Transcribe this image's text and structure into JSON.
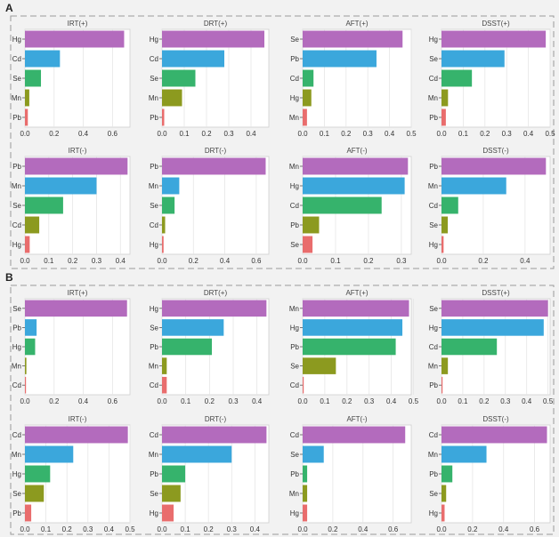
{
  "sections": [
    {
      "label": "A"
    },
    {
      "label": "B"
    }
  ],
  "colors": {
    "rank1": "#b36bbd",
    "rank2": "#3ba7dc",
    "rank3": "#36b36c",
    "rank4": "#8c9a1f",
    "rank5": "#e96d6d",
    "panel_bg": "#ffffff",
    "grid": "#e6e6e6",
    "dash": "#9a9a9a"
  },
  "chart_data": [
    {
      "type": "bar",
      "section": "A",
      "title": "IRT(+)",
      "categories": [
        "Hg",
        "Cd",
        "Se",
        "Mn",
        "Pb"
      ],
      "values": [
        0.68,
        0.24,
        0.11,
        0.03,
        0.02
      ],
      "xlim": [
        0,
        0.72
      ],
      "ticks": [
        "0.0",
        "0.2",
        "0.4",
        "0.6"
      ],
      "tick_values": [
        0,
        0.2,
        0.4,
        0.6
      ]
    },
    {
      "type": "bar",
      "section": "A",
      "title": "DRT(+)",
      "categories": [
        "Hg",
        "Cd",
        "Se",
        "Mn",
        "Pb"
      ],
      "values": [
        0.46,
        0.28,
        0.15,
        0.09,
        0.01
      ],
      "xlim": [
        0,
        0.48
      ],
      "ticks": [
        "0.0",
        "0.1",
        "0.2",
        "0.3",
        "0.4"
      ],
      "tick_values": [
        0,
        0.1,
        0.2,
        0.3,
        0.4
      ]
    },
    {
      "type": "bar",
      "section": "A",
      "title": "AFT(+)",
      "categories": [
        "Se",
        "Pb",
        "Cd",
        "Hg",
        "Mn"
      ],
      "values": [
        0.46,
        0.34,
        0.05,
        0.04,
        0.02
      ],
      "xlim": [
        0,
        0.5
      ],
      "ticks": [
        "0.0",
        "0.1",
        "0.2",
        "0.3",
        "0.4",
        "0.5"
      ],
      "tick_values": [
        0,
        0.1,
        0.2,
        0.3,
        0.4,
        0.5
      ]
    },
    {
      "type": "bar",
      "section": "A",
      "title": "DSST(+)",
      "categories": [
        "Hg",
        "Se",
        "Cd",
        "Mn",
        "Pb"
      ],
      "values": [
        0.48,
        0.29,
        0.14,
        0.03,
        0.02
      ],
      "xlim": [
        0,
        0.5
      ],
      "ticks": [
        "0.0",
        "0.1",
        "0.2",
        "0.3",
        "0.4",
        "0.5"
      ],
      "tick_values": [
        0,
        0.1,
        0.2,
        0.3,
        0.4,
        0.5
      ]
    },
    {
      "type": "bar",
      "section": "A",
      "title": "IRT(-)",
      "categories": [
        "Pb",
        "Mn",
        "Se",
        "Cd",
        "Hg"
      ],
      "values": [
        0.43,
        0.3,
        0.16,
        0.06,
        0.02
      ],
      "xlim": [
        0,
        0.44
      ],
      "ticks": [
        "0.0",
        "0.1",
        "0.2",
        "0.3",
        "0.4"
      ],
      "tick_values": [
        0,
        0.1,
        0.2,
        0.3,
        0.4
      ]
    },
    {
      "type": "bar",
      "section": "A",
      "title": "DRT(-)",
      "categories": [
        "Pb",
        "Mn",
        "Se",
        "Cd",
        "Hg"
      ],
      "values": [
        0.66,
        0.11,
        0.08,
        0.02,
        0.01
      ],
      "xlim": [
        0,
        0.68
      ],
      "ticks": [
        "0.0",
        "0.2",
        "0.4",
        "0.6"
      ],
      "tick_values": [
        0,
        0.2,
        0.4,
        0.6
      ]
    },
    {
      "type": "bar",
      "section": "A",
      "title": "AFT(-)",
      "categories": [
        "Mn",
        "Hg",
        "Cd",
        "Pb",
        "Se"
      ],
      "values": [
        0.32,
        0.31,
        0.24,
        0.05,
        0.03
      ],
      "xlim": [
        0,
        0.33
      ],
      "ticks": [
        "0.0",
        "0.1",
        "0.2",
        "0.3"
      ],
      "tick_values": [
        0,
        0.1,
        0.2,
        0.3
      ]
    },
    {
      "type": "bar",
      "section": "A",
      "title": "DSST(-)",
      "categories": [
        "Pb",
        "Mn",
        "Cd",
        "Se",
        "Hg"
      ],
      "values": [
        0.5,
        0.31,
        0.08,
        0.03,
        0.01
      ],
      "xlim": [
        0,
        0.52
      ],
      "ticks": [
        "0.0",
        "0.2",
        "0.4"
      ],
      "tick_values": [
        0,
        0.2,
        0.4
      ]
    },
    {
      "type": "bar",
      "section": "B",
      "title": "IRT(+)",
      "categories": [
        "Se",
        "Pb",
        "Hg",
        "Mn",
        "Cd"
      ],
      "values": [
        0.7,
        0.08,
        0.07,
        0.01,
        0.005
      ],
      "xlim": [
        0,
        0.72
      ],
      "ticks": [
        "0.0",
        "0.2",
        "0.4",
        "0.6"
      ],
      "tick_values": [
        0,
        0.2,
        0.4,
        0.6
      ]
    },
    {
      "type": "bar",
      "section": "B",
      "title": "DRT(+)",
      "categories": [
        "Hg",
        "Se",
        "Pb",
        "Mn",
        "Cd"
      ],
      "values": [
        0.44,
        0.26,
        0.21,
        0.02,
        0.02
      ],
      "xlim": [
        0,
        0.45
      ],
      "ticks": [
        "0.0",
        "0.1",
        "0.2",
        "0.3",
        "0.4"
      ],
      "tick_values": [
        0,
        0.1,
        0.2,
        0.3,
        0.4
      ]
    },
    {
      "type": "bar",
      "section": "B",
      "title": "AFT(+)",
      "categories": [
        "Mn",
        "Hg",
        "Pb",
        "Se",
        "Cd"
      ],
      "values": [
        0.48,
        0.45,
        0.42,
        0.15,
        0.0
      ],
      "xlim": [
        0,
        0.49
      ],
      "ticks": [
        "0.0",
        "0.1",
        "0.2",
        "0.3",
        "0.4",
        "0.5"
      ],
      "tick_values": [
        0,
        0.1,
        0.2,
        0.3,
        0.4,
        0.5
      ]
    },
    {
      "type": "bar",
      "section": "B",
      "title": "DSST(+)",
      "categories": [
        "Se",
        "Hg",
        "Cd",
        "Mn",
        "Pb"
      ],
      "values": [
        0.5,
        0.48,
        0.26,
        0.03,
        0.005
      ],
      "xlim": [
        0,
        0.51
      ],
      "ticks": [
        "0.0",
        "0.1",
        "0.2",
        "0.3",
        "0.4",
        "0.5"
      ],
      "tick_values": [
        0,
        0.1,
        0.2,
        0.3,
        0.4,
        0.5
      ]
    },
    {
      "type": "bar",
      "section": "B",
      "title": "IRT(-)",
      "categories": [
        "Cd",
        "Mn",
        "Hg",
        "Se",
        "Pb"
      ],
      "values": [
        0.49,
        0.23,
        0.12,
        0.09,
        0.03
      ],
      "xlim": [
        0,
        0.5
      ],
      "ticks": [
        "0.0",
        "0.1",
        "0.2",
        "0.3",
        "0.4",
        "0.5"
      ],
      "tick_values": [
        0,
        0.1,
        0.2,
        0.3,
        0.4,
        0.5
      ]
    },
    {
      "type": "bar",
      "section": "B",
      "title": "DRT(-)",
      "categories": [
        "Cd",
        "Mn",
        "Pb",
        "Se",
        "Hg"
      ],
      "values": [
        0.45,
        0.3,
        0.1,
        0.08,
        0.05
      ],
      "xlim": [
        0,
        0.46
      ],
      "ticks": [
        "0.0",
        "0.1",
        "0.2",
        "0.3",
        "0.4"
      ],
      "tick_values": [
        0,
        0.1,
        0.2,
        0.3,
        0.4
      ]
    },
    {
      "type": "bar",
      "section": "B",
      "title": "AFT(-)",
      "categories": [
        "Cd",
        "Se",
        "Pb",
        "Mn",
        "Hg"
      ],
      "values": [
        0.68,
        0.14,
        0.03,
        0.03,
        0.03
      ],
      "xlim": [
        0,
        0.72
      ],
      "ticks": [
        "0.0",
        "0.2",
        "0.4",
        "0.6"
      ],
      "tick_values": [
        0,
        0.2,
        0.4,
        0.6
      ]
    },
    {
      "type": "bar",
      "section": "B",
      "title": "DSST(-)",
      "categories": [
        "Cd",
        "Mn",
        "Pb",
        "Se",
        "Hg"
      ],
      "values": [
        0.68,
        0.29,
        0.07,
        0.03,
        0.02
      ],
      "xlim": [
        0,
        0.7
      ],
      "ticks": [
        "0.0",
        "0.2",
        "0.4",
        "0.6"
      ],
      "tick_values": [
        0,
        0.2,
        0.4,
        0.6
      ]
    }
  ]
}
